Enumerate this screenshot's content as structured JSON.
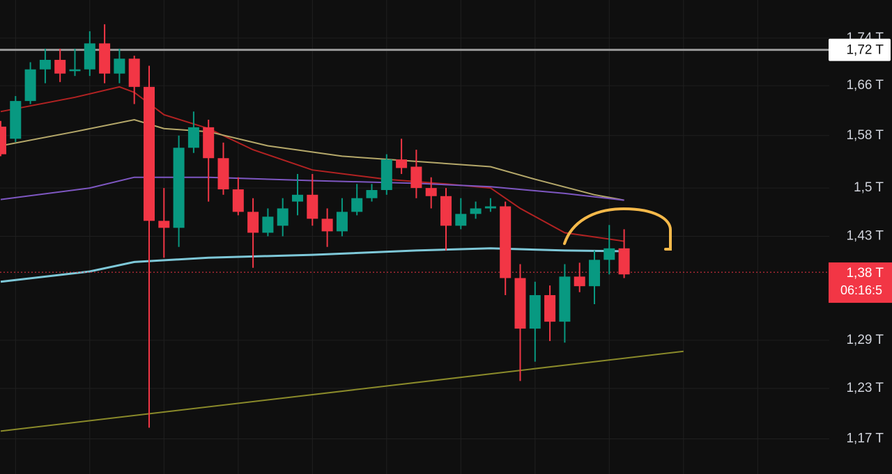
{
  "chart_data": {
    "type": "candlestick",
    "log": true,
    "grid": true,
    "up_color": "#089981",
    "down_color": "#f23645",
    "categories": [
      null,
      null,
      null,
      null,
      null,
      null,
      null,
      null,
      null,
      null,
      null,
      null,
      null,
      null,
      null,
      null,
      null,
      null,
      null,
      null,
      null,
      null,
      null,
      null,
      null,
      null,
      null,
      null,
      null,
      null,
      null,
      null,
      null,
      null,
      null,
      null,
      null,
      null,
      null,
      null,
      null,
      null,
      null
    ],
    "open": [
      1.594,
      1.575,
      1.635,
      1.687,
      1.703,
      1.684,
      1.687,
      1.731,
      1.68,
      1.705,
      1.658,
      1.452,
      1.442,
      1.561,
      1.593,
      1.545,
      1.498,
      1.465,
      1.435,
      1.445,
      1.48,
      1.49,
      1.455,
      1.437,
      1.465,
      1.485,
      1.497,
      1.543,
      1.532,
      1.5,
      1.488,
      1.445,
      1.462,
      1.47,
      1.473,
      1.372,
      1.305,
      1.349,
      1.314,
      1.374,
      1.361,
      1.397,
      1.413
    ],
    "high": [
      1.603,
      1.643,
      1.699,
      1.722,
      1.722,
      1.722,
      1.752,
      1.764,
      1.722,
      1.71,
      1.693,
      1.5,
      1.58,
      1.618,
      1.605,
      1.569,
      1.516,
      1.485,
      1.47,
      1.485,
      1.521,
      1.521,
      1.47,
      1.485,
      1.506,
      1.506,
      1.551,
      1.575,
      1.558,
      1.516,
      1.5,
      1.485,
      1.48,
      1.485,
      1.48,
      1.391,
      1.367,
      1.362,
      1.391,
      1.393,
      1.41,
      1.446,
      1.44
    ],
    "low": [
      1.548,
      1.57,
      1.63,
      1.664,
      1.666,
      1.676,
      1.676,
      1.664,
      1.664,
      1.63,
      1.183,
      1.4,
      1.415,
      1.553,
      1.48,
      1.49,
      1.46,
      1.386,
      1.43,
      1.43,
      1.46,
      1.445,
      1.415,
      1.43,
      1.46,
      1.48,
      1.49,
      1.521,
      1.485,
      1.47,
      1.41,
      1.44,
      1.455,
      1.465,
      1.349,
      1.239,
      1.263,
      1.289,
      1.287,
      1.353,
      1.337,
      1.377,
      1.372
    ],
    "close": [
      1.551,
      1.635,
      1.687,
      1.703,
      1.68,
      1.687,
      1.731,
      1.68,
      1.705,
      1.658,
      1.452,
      1.442,
      1.561,
      1.593,
      1.545,
      1.498,
      1.465,
      1.435,
      1.458,
      1.47,
      1.49,
      1.455,
      1.437,
      1.465,
      1.485,
      1.497,
      1.543,
      1.53,
      1.5,
      1.488,
      1.445,
      1.462,
      1.47,
      1.473,
      1.372,
      1.305,
      1.349,
      1.314,
      1.374,
      1.361,
      1.397,
      1.413,
      1.377
    ],
    "overlays": [
      {
        "color": "#b22222",
        "x": [
          0,
          5,
          8,
          9,
          11,
          14,
          17,
          21,
          26,
          30,
          33,
          35,
          38,
          42
        ],
        "values": [
          1.618,
          1.641,
          1.658,
          1.649,
          1.613,
          1.591,
          1.558,
          1.527,
          1.513,
          1.506,
          1.5,
          1.47,
          1.435,
          1.423
        ]
      },
      {
        "color": "#b5a86a",
        "x": [
          0,
          5,
          9,
          11,
          14,
          18,
          23,
          28,
          33,
          36,
          40,
          42
        ],
        "values": [
          1.564,
          1.586,
          1.605,
          1.591,
          1.586,
          1.564,
          1.548,
          1.54,
          1.532,
          1.513,
          1.49,
          1.482
        ]
      },
      {
        "color": "#7e57c2",
        "x": [
          0,
          6,
          9,
          14,
          21,
          28,
          33,
          38,
          42
        ],
        "values": [
          1.483,
          1.5,
          1.516,
          1.516,
          1.511,
          1.507,
          1.502,
          1.492,
          1.482
        ]
      },
      {
        "color": "#7ec8d8",
        "x": [
          0,
          6,
          9,
          14,
          21,
          28,
          33,
          38,
          42
        ],
        "values": [
          1.367,
          1.381,
          1.394,
          1.4,
          1.404,
          1.41,
          1.413,
          1.41,
          1.409
        ]
      },
      {
        "color": "#8a8a2a",
        "x": [
          0,
          46
        ],
        "values": [
          1.179,
          1.276
        ]
      }
    ],
    "price_lines": [
      {
        "value": 1.72,
        "label": "1,72 T",
        "color": "#9a9a9a"
      },
      {
        "value": 1.38,
        "label": "1,38 T",
        "countdown": "06:16:5",
        "color": "#f23645"
      }
    ],
    "ylim": [
      1.13,
      1.807
    ],
    "yticks": [
      {
        "value": 1.74,
        "label": "1,74 T"
      },
      {
        "value": 1.66,
        "label": "1,66 T"
      },
      {
        "value": 1.58,
        "label": "1,58 T"
      },
      {
        "value": 1.5,
        "label": "1,5 T"
      },
      {
        "value": 1.43,
        "label": "1,43 T"
      },
      {
        "value": 1.29,
        "label": "1,29 T"
      },
      {
        "value": 1.23,
        "label": "1,23 T"
      },
      {
        "value": 1.17,
        "label": "1,17 T"
      }
    ]
  }
}
